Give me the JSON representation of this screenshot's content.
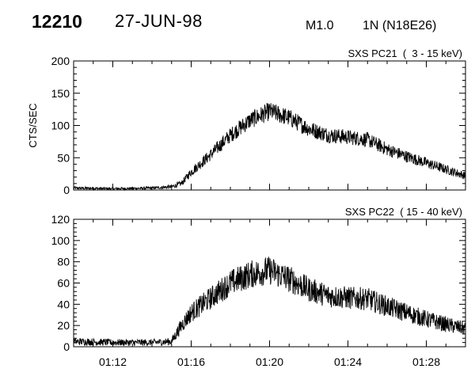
{
  "header": {
    "event_id": "12210",
    "date": "27-JUN-98",
    "flare_class": "M1.0",
    "region": "1N (N18E26)"
  },
  "chart_data": [
    {
      "type": "line",
      "title": "SXS PC21  (  3 - 15 keV)",
      "xlabel": "",
      "ylabel": "CTS/SEC",
      "x_unit": "UT time",
      "xlim": [
        "01:10",
        "01:30"
      ],
      "x_ticks": [
        "01:12",
        "01:16",
        "01:20",
        "01:24",
        "01:28"
      ],
      "ylim": [
        0,
        200
      ],
      "y_ticks": [
        0,
        50,
        100,
        150,
        200
      ],
      "grid": false,
      "series": [
        {
          "x": [
            "01:10",
            "01:12",
            "01:14",
            "01:15",
            "01:15:30",
            "01:16",
            "01:17",
            "01:18",
            "01:19",
            "01:20",
            "01:21",
            "01:22",
            "01:23",
            "01:24",
            "01:25",
            "01:26",
            "01:27",
            "01:28",
            "01:29",
            "01:30"
          ],
          "values": [
            3,
            2,
            3,
            5,
            10,
            28,
            55,
            85,
            108,
            122,
            112,
            95,
            85,
            82,
            78,
            63,
            52,
            42,
            32,
            22
          ]
        }
      ]
    },
    {
      "type": "line",
      "title": "SXS PC22  ( 15 - 40 keV)",
      "xlabel": "",
      "ylabel": "",
      "x_unit": "UT time",
      "xlim": [
        "01:10",
        "01:30"
      ],
      "x_ticks": [
        "01:12",
        "01:16",
        "01:20",
        "01:24",
        "01:28"
      ],
      "ylim": [
        0,
        120
      ],
      "y_ticks": [
        0,
        20,
        40,
        60,
        80,
        100,
        120
      ],
      "grid": false,
      "series": [
        {
          "x": [
            "01:10",
            "01:12",
            "01:14",
            "01:15",
            "01:15:30",
            "01:16",
            "01:17",
            "01:18",
            "01:19",
            "01:20",
            "01:21",
            "01:22",
            "01:23",
            "01:24",
            "01:25",
            "01:26",
            "01:27",
            "01:28",
            "01:29",
            "01:30"
          ],
          "values": [
            5,
            4,
            4,
            5,
            20,
            32,
            46,
            60,
            68,
            72,
            64,
            54,
            48,
            46,
            45,
            38,
            32,
            26,
            21,
            17
          ]
        }
      ]
    }
  ]
}
